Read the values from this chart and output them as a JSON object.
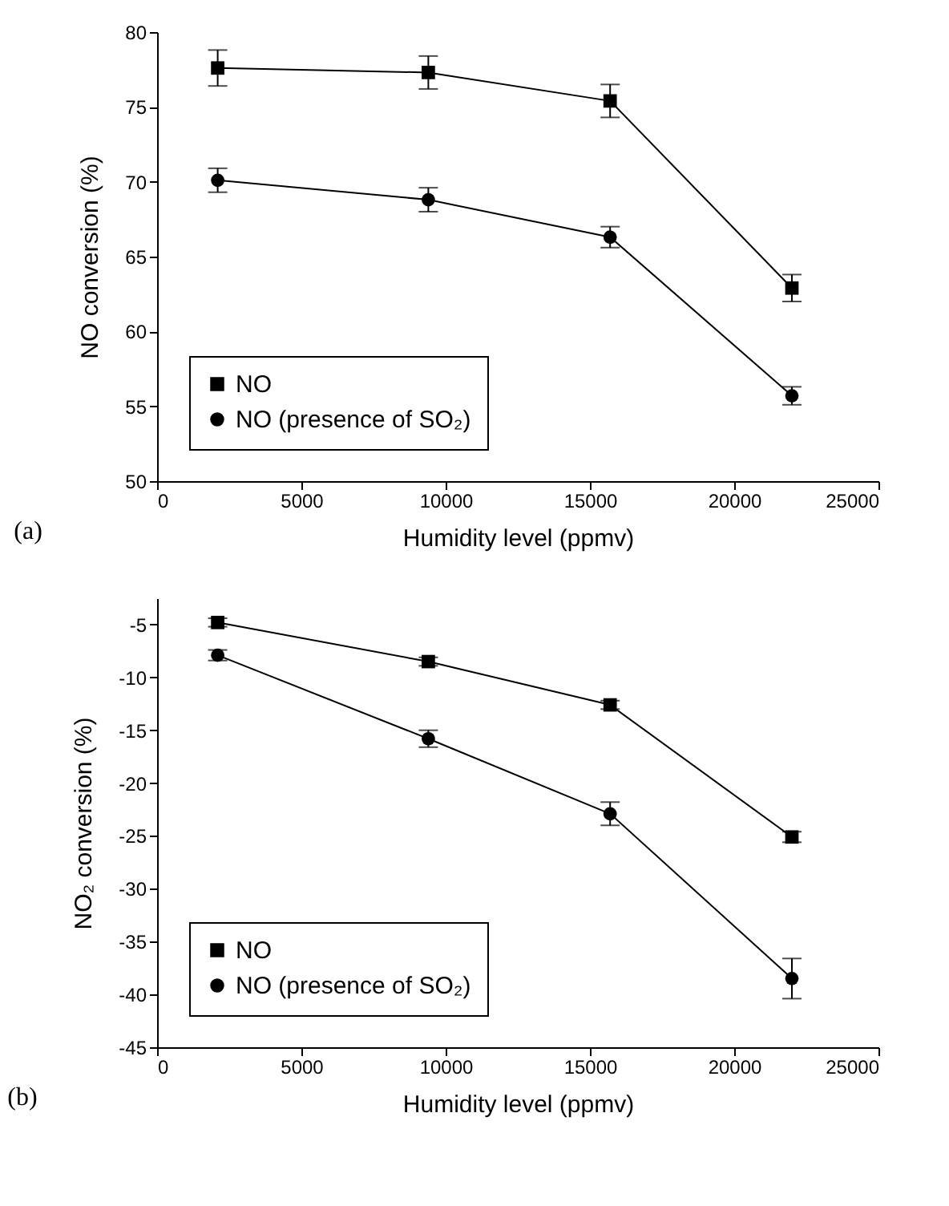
{
  "chart_data": [
    {
      "type": "line",
      "xlabel": "Humidity level (ppmv)",
      "ylabel": "NO conversion (%)",
      "annotations": [
        "(a)"
      ],
      "x": [
        2100,
        9400,
        15700,
        22000
      ],
      "xlim": [
        0,
        25000
      ],
      "xticks": [
        0,
        5000,
        10000,
        15000,
        20000,
        25000
      ],
      "ylim": [
        50,
        80
      ],
      "yticks": [
        50,
        55,
        60,
        65,
        70,
        75,
        80
      ],
      "grid": false,
      "legend": "bottom left",
      "line_style": "solid",
      "series": [
        {
          "name": "NO",
          "color": "#000000",
          "marker": "square",
          "values": [
            77.6,
            77.3,
            75.4,
            62.9
          ],
          "errors": [
            1.2,
            1.1,
            1.1,
            0.9
          ]
        },
        {
          "name": "NO (presence of SO₂)",
          "color": "#000000",
          "marker": "circle",
          "values": [
            70.1,
            68.8,
            66.3,
            55.7
          ],
          "errors": [
            0.8,
            0.8,
            0.7,
            0.6
          ]
        }
      ]
    },
    {
      "type": "line",
      "xlabel": "Humidity level (ppmv)",
      "ylabel": "NO₂ conversion (%)",
      "annotations": [
        "(b)"
      ],
      "x": [
        2100,
        9400,
        15700,
        22000
      ],
      "xlim": [
        0,
        25000
      ],
      "xticks": [
        0,
        5000,
        10000,
        15000,
        20000,
        25000
      ],
      "ylim": [
        -45,
        -2.5
      ],
      "yticks": [
        -45,
        -40,
        -35,
        -30,
        -25,
        -20,
        -15,
        -10,
        -5
      ],
      "grid": false,
      "legend": "bottom left",
      "line_style": "solid",
      "series": [
        {
          "name": "NO",
          "color": "#000000",
          "marker": "square",
          "values": [
            -4.8,
            -8.5,
            -12.6,
            -25.1
          ],
          "errors": [
            0.4,
            0.4,
            0.4,
            0.5
          ]
        },
        {
          "name": "NO (presence of SO₂)",
          "color": "#000000",
          "marker": "circle",
          "values": [
            -7.9,
            -15.8,
            -22.9,
            -38.5
          ],
          "errors": [
            0.5,
            0.8,
            1.1,
            1.9
          ]
        }
      ]
    }
  ]
}
